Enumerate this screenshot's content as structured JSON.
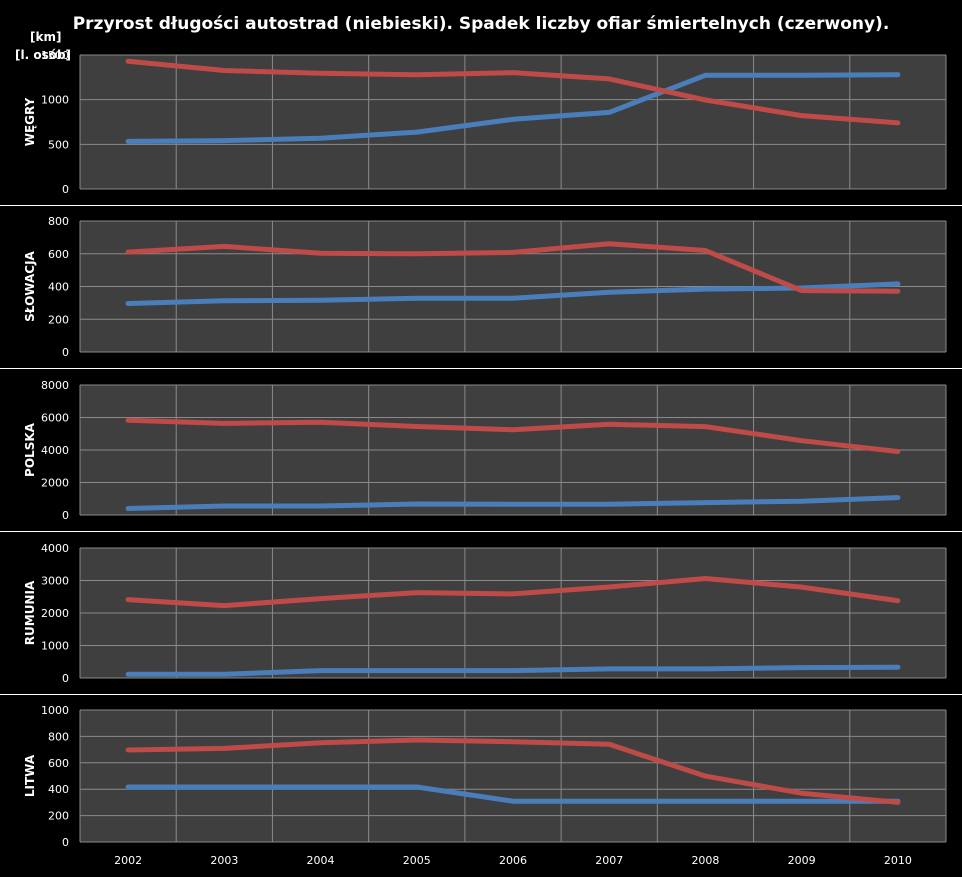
{
  "title": "Przyrost długości autostrad (niebieski). Spadek liczby ofiar śmiertelnych (czerwony).",
  "unit_top": "[km]",
  "unit_bottom": "[l. osób]",
  "colors": {
    "background": "#000000",
    "plot_area": "#3f3f3f",
    "grid": "#8a8a8a",
    "highways": "#4a7ebb",
    "fatalities": "#be4b48"
  },
  "chart_data": [
    {
      "type": "line",
      "country": "WĘGRY",
      "x": [
        "2002",
        "2003",
        "2004",
        "2005",
        "2006",
        "2007",
        "2008",
        "2009",
        "2010"
      ],
      "ylim": [
        0,
        1500
      ],
      "yticks": [
        0,
        500,
        1000,
        1500
      ],
      "series": [
        {
          "color": "#4a7ebb",
          "values": [
            533,
            542,
            569,
            637,
            780,
            858,
            1273,
            1273,
            1280
          ]
        },
        {
          "color": "#be4b48",
          "values": [
            1429,
            1326,
            1296,
            1278,
            1303,
            1232,
            996,
            822,
            740
          ]
        }
      ]
    },
    {
      "type": "line",
      "country": "SŁOWACJA",
      "x": [
        "2002",
        "2003",
        "2004",
        "2005",
        "2006",
        "2007",
        "2008",
        "2009",
        "2010"
      ],
      "ylim": [
        0,
        800
      ],
      "yticks": [
        0,
        200,
        400,
        600,
        800
      ],
      "series": [
        {
          "color": "#4a7ebb",
          "values": [
            296,
            313,
            316,
            328,
            328,
            365,
            384,
            391,
            416
          ]
        },
        {
          "color": "#be4b48",
          "values": [
            610,
            645,
            603,
            600,
            608,
            661,
            620,
            375,
            371
          ]
        }
      ]
    },
    {
      "type": "line",
      "country": "POLSKA",
      "x": [
        "2002",
        "2003",
        "2004",
        "2005",
        "2006",
        "2007",
        "2008",
        "2009",
        "2010"
      ],
      "ylim": [
        0,
        8000
      ],
      "yticks": [
        0,
        2000,
        4000,
        6000,
        8000
      ],
      "series": [
        {
          "color": "#4a7ebb",
          "values": [
            398,
            552,
            552,
            675,
            663,
            663,
            765,
            849,
            1070
          ]
        },
        {
          "color": "#be4b48",
          "values": [
            5827,
            5640,
            5712,
            5444,
            5243,
            5583,
            5437,
            4572,
            3907
          ]
        }
      ]
    },
    {
      "type": "line",
      "country": "RUMUNIA",
      "x": [
        "2002",
        "2003",
        "2004",
        "2005",
        "2006",
        "2007",
        "2008",
        "2009",
        "2010"
      ],
      "ylim": [
        0,
        4000
      ],
      "yticks": [
        0,
        1000,
        2000,
        3000,
        4000
      ],
      "series": [
        {
          "color": "#4a7ebb",
          "values": [
            113,
            113,
            228,
            228,
            228,
            281,
            281,
            321,
            332
          ]
        },
        {
          "color": "#be4b48",
          "values": [
            2412,
            2229,
            2444,
            2629,
            2587,
            2800,
            3061,
            2796,
            2377
          ]
        }
      ]
    },
    {
      "type": "line",
      "country": "LITWA",
      "x": [
        "2002",
        "2003",
        "2004",
        "2005",
        "2006",
        "2007",
        "2008",
        "2009",
        "2010"
      ],
      "ylim": [
        0,
        1000
      ],
      "yticks": [
        0,
        200,
        400,
        600,
        800,
        1000
      ],
      "series": [
        {
          "color": "#4a7ebb",
          "values": [
            417,
            417,
            417,
            417,
            309,
            309,
            309,
            309,
            309
          ]
        },
        {
          "color": "#be4b48",
          "values": [
            697,
            709,
            752,
            773,
            760,
            740,
            499,
            370,
            300
          ]
        }
      ]
    }
  ]
}
